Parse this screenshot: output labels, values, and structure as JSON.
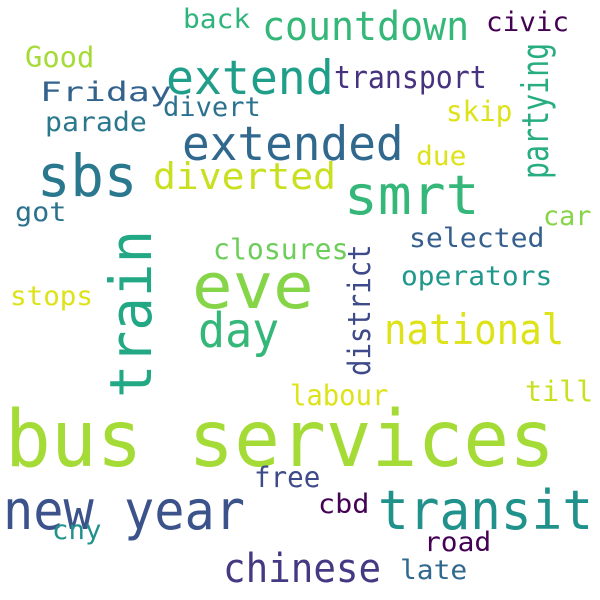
{
  "words": [
    {
      "text": "bus services",
      "color": "#a5db36"
    },
    {
      "text": "eve",
      "color": "#86d549"
    },
    {
      "text": "train",
      "color": "#22a884"
    },
    {
      "text": "new year",
      "color": "#3b528b"
    },
    {
      "text": "transit",
      "color": "#21918c"
    },
    {
      "text": "smrt",
      "color": "#35b779"
    },
    {
      "text": "sbs",
      "color": "#2a788e"
    },
    {
      "text": "extended",
      "color": "#31688e"
    },
    {
      "text": "extend",
      "color": "#1f9e89"
    },
    {
      "text": "day",
      "color": "#35b779"
    },
    {
      "text": "national",
      "color": "#dde318"
    },
    {
      "text": "chinese",
      "color": "#443983"
    },
    {
      "text": "countdown",
      "color": "#35b779"
    },
    {
      "text": "diverted",
      "color": "#c8e020"
    },
    {
      "text": "district",
      "color": "#3e4a89"
    },
    {
      "text": "transport",
      "color": "#46327e"
    },
    {
      "text": "partying",
      "color": "#27ad81"
    },
    {
      "text": "closures",
      "color": "#6ccd5a"
    },
    {
      "text": "selected",
      "color": "#355f8d"
    },
    {
      "text": "operators",
      "color": "#1f988b"
    },
    {
      "text": "labour",
      "color": "#dde318"
    },
    {
      "text": "free",
      "color": "#3e4a89"
    },
    {
      "text": "road",
      "color": "#440154"
    },
    {
      "text": "late",
      "color": "#31688e"
    },
    {
      "text": "cbd",
      "color": "#440154"
    },
    {
      "text": "cny",
      "color": "#21918c"
    },
    {
      "text": "till",
      "color": "#c8e020"
    },
    {
      "text": "car",
      "color": "#86d549"
    },
    {
      "text": "due",
      "color": "#dde318"
    },
    {
      "text": "skip",
      "color": "#dde318"
    },
    {
      "text": "divert",
      "color": "#2c728e"
    },
    {
      "text": "parade",
      "color": "#2a788e"
    },
    {
      "text": "Friday",
      "color": "#33638d"
    },
    {
      "text": "Good",
      "color": "#a5db36"
    },
    {
      "text": "back",
      "color": "#2fb47c"
    },
    {
      "text": "civic",
      "color": "#440154"
    },
    {
      "text": "got",
      "color": "#2c728e"
    },
    {
      "text": "stops",
      "color": "#dde318"
    }
  ]
}
